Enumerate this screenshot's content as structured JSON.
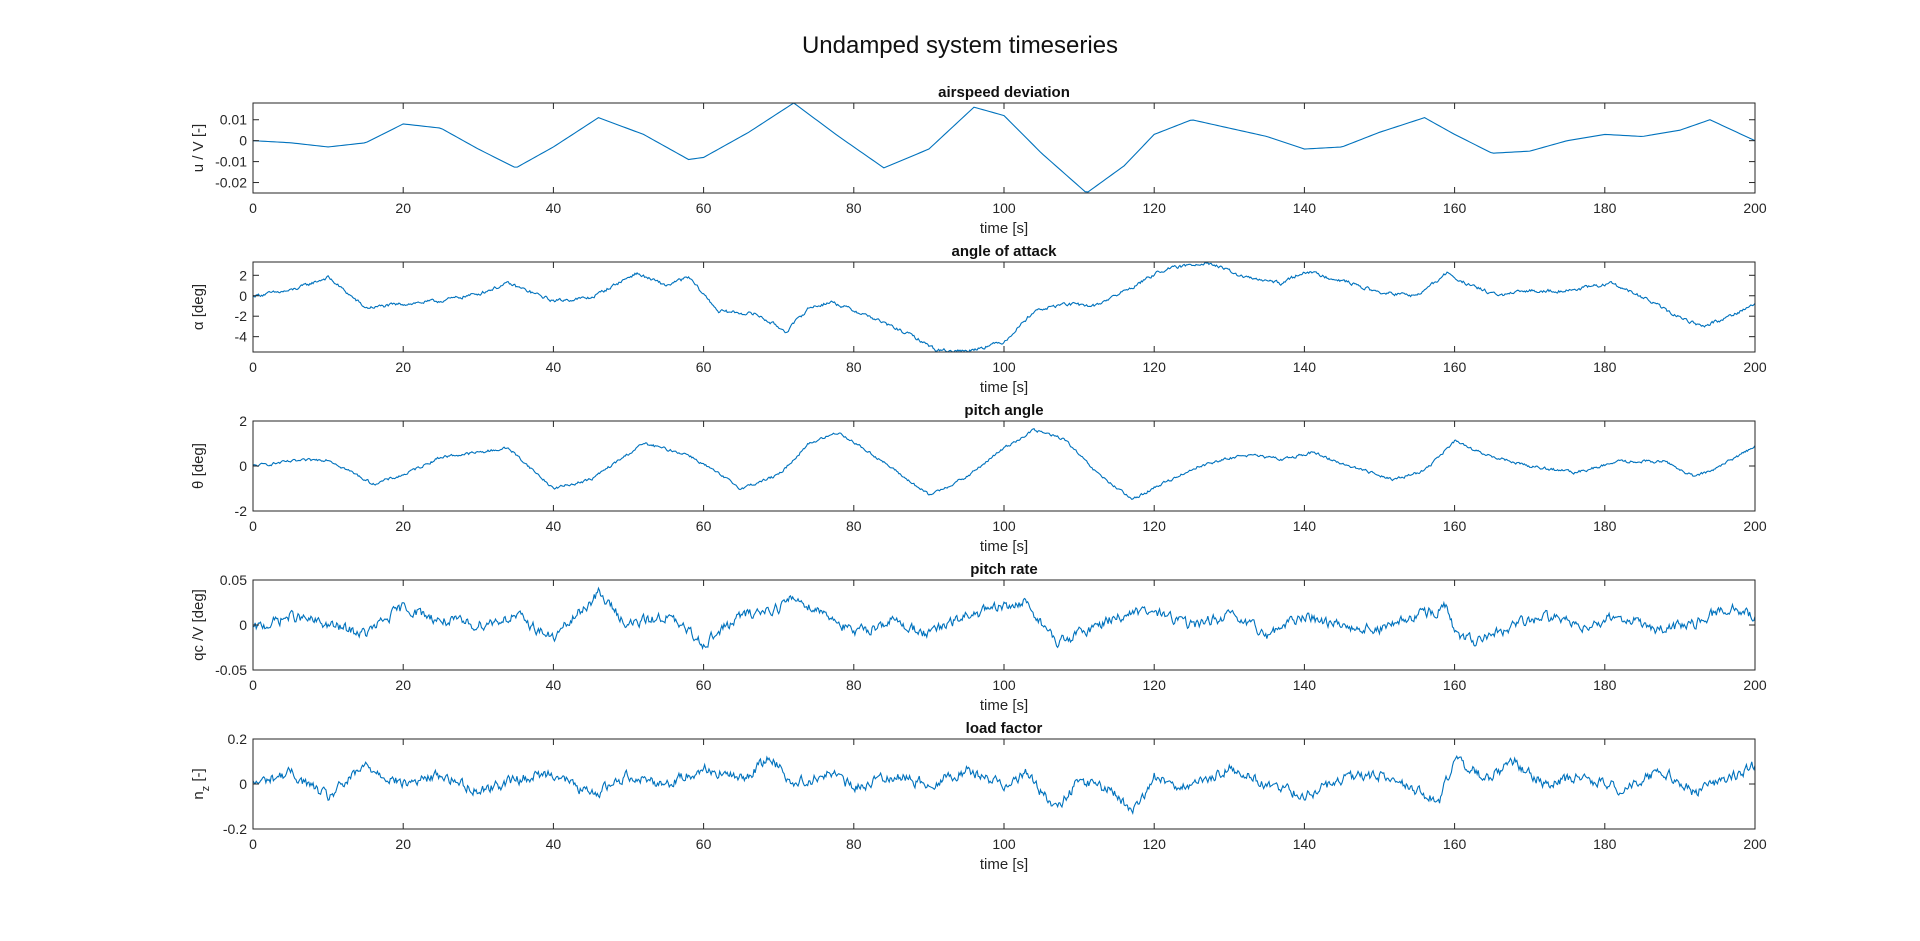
{
  "figure": {
    "title": "Undamped system timeseries",
    "line_color": "#0072BD"
  },
  "chart_data": [
    {
      "type": "line",
      "title": "airspeed deviation",
      "xlabel": "time [s]",
      "ylabel": "u / V [-]",
      "xlim": [
        0,
        200
      ],
      "ylim": [
        -0.025,
        0.018
      ],
      "xticks": [
        0,
        20,
        40,
        60,
        80,
        100,
        120,
        140,
        160,
        180,
        200
      ],
      "yticks": [
        -0.02,
        -0.01,
        0,
        0.01
      ],
      "ytick_labels": [
        "-0.02",
        "-0.01",
        "0",
        "0.01"
      ],
      "grid": false,
      "series": [
        {
          "x": [
            0,
            5,
            10,
            15,
            20,
            25,
            30,
            35,
            40,
            46,
            52,
            58,
            60,
            66,
            72,
            78,
            84,
            90,
            96,
            100,
            105,
            111,
            116,
            120,
            125,
            130,
            135,
            140,
            145,
            150,
            156,
            160,
            165,
            170,
            175,
            180,
            185,
            190,
            194,
            200
          ],
          "values": [
            0,
            -0.001,
            -0.003,
            -0.001,
            0.008,
            0.006,
            -0.004,
            -0.013,
            -0.003,
            0.011,
            0.003,
            -0.009,
            -0.008,
            0.004,
            0.018,
            0.002,
            -0.013,
            -0.004,
            0.016,
            0.012,
            -0.006,
            -0.025,
            -0.012,
            0.003,
            0.01,
            0.006,
            0.002,
            -0.004,
            -0.003,
            0.004,
            0.011,
            0.003,
            -0.006,
            -0.005,
            0.0,
            0.003,
            0.002,
            0.005,
            0.01,
            0.0
          ]
        }
      ]
    },
    {
      "type": "line",
      "title": "angle of attack",
      "xlabel": "time [s]",
      "ylabel": "α [deg]",
      "xlim": [
        0,
        200
      ],
      "ylim": [
        -5.5,
        3.3
      ],
      "xticks": [
        0,
        20,
        40,
        60,
        80,
        100,
        120,
        140,
        160,
        180,
        200
      ],
      "yticks": [
        -4,
        -2,
        0,
        2
      ],
      "ytick_labels": [
        "-4",
        "-2",
        "0",
        "2"
      ],
      "grid": false,
      "series": [
        {
          "x": [
            0,
            5,
            10,
            15,
            20,
            25,
            30,
            34,
            40,
            45,
            51,
            55,
            58,
            62,
            67,
            71,
            74,
            77,
            82,
            88,
            91,
            95,
            100,
            104,
            108,
            112,
            117,
            121,
            127,
            132,
            137,
            140,
            145,
            150,
            155,
            159,
            162,
            166,
            170,
            175,
            181,
            186,
            189,
            193,
            196,
            200
          ],
          "values": [
            0,
            0.5,
            1.8,
            -1.2,
            -0.8,
            -0.5,
            0.2,
            1.2,
            -0.5,
            -0.2,
            2.2,
            1.0,
            1.8,
            -1.5,
            -1.8,
            -3.5,
            -1.2,
            -0.6,
            -2.0,
            -4.0,
            -5.3,
            -5.4,
            -4.5,
            -1.5,
            -0.8,
            -1.0,
            0.8,
            2.5,
            3.3,
            1.8,
            1.2,
            2.4,
            1.5,
            0.3,
            0.0,
            2.2,
            1.0,
            0.0,
            0.5,
            0.5,
            1.2,
            -0.5,
            -1.8,
            -3.0,
            -2.2,
            -0.8
          ]
        }
      ]
    },
    {
      "type": "line",
      "title": "pitch angle",
      "xlabel": "time [s]",
      "ylabel": "θ [deg]",
      "xlim": [
        0,
        200
      ],
      "ylim": [
        -2,
        2
      ],
      "xticks": [
        0,
        20,
        40,
        60,
        80,
        100,
        120,
        140,
        160,
        180,
        200
      ],
      "yticks": [
        -2,
        0,
        2
      ],
      "ytick_labels": [
        "-2",
        "0",
        "2"
      ],
      "grid": false,
      "series": [
        {
          "x": [
            0,
            5,
            10,
            16,
            20,
            25,
            30,
            34,
            40,
            45,
            52,
            58,
            65,
            70,
            74,
            78,
            83,
            90,
            95,
            100,
            104,
            108,
            112,
            117,
            121,
            126,
            132,
            137,
            141,
            146,
            152,
            156,
            160,
            164,
            170,
            176,
            182,
            188,
            192,
            196,
            200
          ],
          "values": [
            0,
            0.2,
            0.3,
            -0.8,
            -0.4,
            0.4,
            0.6,
            0.8,
            -1.0,
            -0.6,
            1.0,
            0.5,
            -1.0,
            -0.4,
            1.0,
            1.5,
            0.4,
            -1.3,
            -0.5,
            0.8,
            1.6,
            1.2,
            -0.2,
            -1.5,
            -0.8,
            0.0,
            0.5,
            0.3,
            0.6,
            0.0,
            -0.6,
            -0.2,
            1.1,
            0.5,
            0.0,
            -0.3,
            0.2,
            0.2,
            -0.5,
            0.1,
            0.9
          ]
        }
      ]
    },
    {
      "type": "line",
      "title": "pitch rate",
      "xlabel": "time [s]",
      "ylabel": "qc /V [deg]",
      "xlim": [
        0,
        200
      ],
      "ylim": [
        -0.05,
        0.05
      ],
      "xticks": [
        0,
        20,
        40,
        60,
        80,
        100,
        120,
        140,
        160,
        180,
        200
      ],
      "yticks": [
        -0.05,
        0,
        0.05
      ],
      "ytick_labels": [
        "-0.05",
        "0",
        "0.05"
      ],
      "grid": false,
      "series": [
        {
          "x": [
            0,
            5,
            10,
            15,
            20,
            25,
            30,
            35,
            40,
            46,
            50,
            55,
            60,
            65,
            70,
            72,
            77,
            80,
            85,
            90,
            95,
            100,
            103,
            107,
            110,
            115,
            120,
            125,
            130,
            135,
            140,
            145,
            150,
            155,
            159,
            160,
            163,
            168,
            172,
            177,
            182,
            187,
            192,
            196,
            200
          ],
          "values": [
            -0.005,
            0.01,
            0.0,
            -0.01,
            0.02,
            0.005,
            0.0,
            0.01,
            -0.015,
            0.035,
            0.0,
            0.01,
            -0.02,
            0.01,
            0.02,
            0.03,
            0.01,
            -0.01,
            0.005,
            -0.01,
            0.01,
            0.02,
            0.025,
            -0.02,
            -0.01,
            0.01,
            0.015,
            0.0,
            0.01,
            -0.01,
            0.01,
            0.0,
            -0.005,
            0.01,
            0.02,
            -0.01,
            -0.02,
            0.0,
            0.01,
            0.0,
            0.01,
            -0.005,
            0.0,
            0.02,
            0.01
          ]
        }
      ]
    },
    {
      "type": "line",
      "title": "load factor",
      "xlabel": "time [s]",
      "ylabel": "n_z [-]",
      "xlim": [
        0,
        200
      ],
      "ylim": [
        -0.2,
        0.2
      ],
      "xticks": [
        0,
        20,
        40,
        60,
        80,
        100,
        120,
        140,
        160,
        180,
        200
      ],
      "yticks": [
        -0.2,
        0,
        0.2
      ],
      "ytick_labels": [
        "-0.2",
        "0",
        "0.2"
      ],
      "grid": false,
      "series": [
        {
          "x": [
            0,
            5,
            10,
            15,
            20,
            25,
            30,
            35,
            40,
            45,
            50,
            55,
            60,
            65,
            69,
            72,
            77,
            80,
            85,
            90,
            95,
            100,
            103,
            107,
            110,
            115,
            117,
            120,
            125,
            130,
            135,
            140,
            145,
            150,
            155,
            158,
            160,
            164,
            168,
            172,
            177,
            182,
            188,
            192,
            196,
            200
          ],
          "values": [
            0.0,
            0.05,
            -0.06,
            0.08,
            0.0,
            0.04,
            -0.03,
            0.02,
            0.05,
            -0.05,
            0.04,
            0.0,
            0.07,
            0.02,
            0.12,
            0.0,
            0.05,
            -0.02,
            0.04,
            0.0,
            0.06,
            0.0,
            0.05,
            -0.12,
            0.02,
            -0.04,
            -0.14,
            0.03,
            -0.02,
            0.07,
            0.0,
            -0.05,
            0.02,
            0.04,
            -0.03,
            -0.08,
            0.12,
            0.02,
            0.1,
            0.0,
            0.03,
            -0.02,
            0.06,
            -0.04,
            0.02,
            0.08
          ]
        }
      ]
    }
  ]
}
